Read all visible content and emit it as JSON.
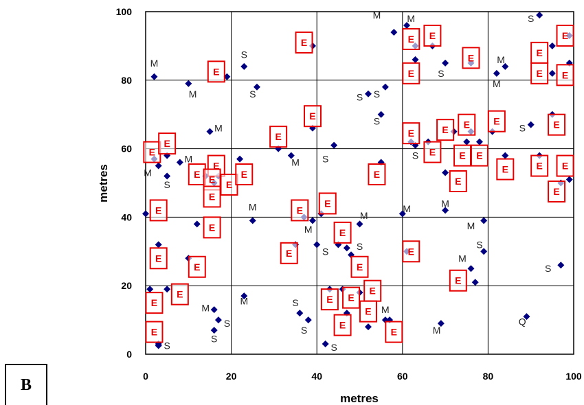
{
  "panel_label": "B",
  "chart_data": {
    "type": "scatter",
    "xlabel": "metres",
    "ylabel": "metres",
    "xlim": [
      0,
      100
    ],
    "ylim": [
      0,
      100
    ],
    "xticks": [
      0,
      20,
      40,
      60,
      80,
      100
    ],
    "yticks": [
      0,
      20,
      40,
      60,
      80,
      100
    ],
    "grid": true,
    "colors": {
      "points": "#000080",
      "e_boxes": "#e60000",
      "grid": "#000000"
    },
    "points": [
      [
        2,
        81
      ],
      [
        10,
        79
      ],
      [
        19,
        81
      ],
      [
        23,
        84
      ],
      [
        26,
        78
      ],
      [
        39,
        90
      ],
      [
        58,
        94
      ],
      [
        61,
        96
      ],
      [
        63,
        90
      ],
      [
        63,
        86
      ],
      [
        67,
        90
      ],
      [
        70,
        85
      ],
      [
        76,
        85
      ],
      [
        82,
        82
      ],
      [
        84,
        84
      ],
      [
        92,
        99
      ],
      [
        95,
        90
      ],
      [
        99,
        93
      ],
      [
        99,
        85
      ],
      [
        95,
        82
      ],
      [
        52,
        76
      ],
      [
        56,
        78
      ],
      [
        55,
        70
      ],
      [
        15,
        65
      ],
      [
        39,
        66
      ],
      [
        44,
        61
      ],
      [
        31,
        60
      ],
      [
        34,
        58
      ],
      [
        22,
        57
      ],
      [
        3,
        55
      ],
      [
        5,
        58
      ],
      [
        5,
        52
      ],
      [
        2,
        57
      ],
      [
        8,
        56
      ],
      [
        14,
        52
      ],
      [
        16,
        50
      ],
      [
        17,
        52
      ],
      [
        55,
        56
      ],
      [
        62,
        62
      ],
      [
        63,
        61
      ],
      [
        66,
        62
      ],
      [
        72,
        65
      ],
      [
        75,
        62
      ],
      [
        76,
        65
      ],
      [
        78,
        62
      ],
      [
        81,
        65
      ],
      [
        84,
        58
      ],
      [
        90,
        67
      ],
      [
        92,
        58
      ],
      [
        95,
        70
      ],
      [
        97,
        50
      ],
      [
        99,
        51
      ],
      [
        70,
        53
      ],
      [
        0,
        41
      ],
      [
        3,
        32
      ],
      [
        12,
        38
      ],
      [
        10,
        28
      ],
      [
        25,
        39
      ],
      [
        37,
        40
      ],
      [
        39,
        39
      ],
      [
        41,
        41
      ],
      [
        35,
        32
      ],
      [
        40,
        32
      ],
      [
        45,
        32
      ],
      [
        47,
        31
      ],
      [
        48,
        29
      ],
      [
        50,
        38
      ],
      [
        60,
        41
      ],
      [
        61,
        30
      ],
      [
        70,
        42
      ],
      [
        79,
        39
      ],
      [
        79,
        30
      ],
      [
        76,
        25
      ],
      [
        77,
        21
      ],
      [
        97,
        26
      ],
      [
        1,
        19
      ],
      [
        5,
        19
      ],
      [
        16,
        13
      ],
      [
        17,
        10
      ],
      [
        16,
        7
      ],
      [
        23,
        17
      ],
      [
        36,
        12
      ],
      [
        38,
        10
      ],
      [
        43,
        19
      ],
      [
        46,
        19
      ],
      [
        47,
        12
      ],
      [
        50,
        18
      ],
      [
        52,
        8
      ],
      [
        56,
        10
      ],
      [
        57,
        10
      ],
      [
        42,
        3
      ],
      [
        69,
        9
      ],
      [
        89,
        11
      ],
      [
        3,
        3
      ],
      [
        3,
        2.5
      ]
    ],
    "labels": [
      {
        "text": "M",
        "x": 2,
        "y": 84
      },
      {
        "text": "M",
        "x": 11,
        "y": 75
      },
      {
        "text": "S",
        "x": 23,
        "y": 86.5
      },
      {
        "text": "S",
        "x": 25,
        "y": 75
      },
      {
        "text": "M",
        "x": 54,
        "y": 98
      },
      {
        "text": "M",
        "x": 62,
        "y": 97
      },
      {
        "text": "S",
        "x": 69,
        "y": 81
      },
      {
        "text": "M",
        "x": 83,
        "y": 85
      },
      {
        "text": "M",
        "x": 82,
        "y": 78
      },
      {
        "text": "S",
        "x": 90,
        "y": 97
      },
      {
        "text": "S",
        "x": 50,
        "y": 74
      },
      {
        "text": "S",
        "x": 54,
        "y": 75
      },
      {
        "text": "S",
        "x": 54,
        "y": 67
      },
      {
        "text": "M",
        "x": 17,
        "y": 65
      },
      {
        "text": "M",
        "x": 35,
        "y": 55
      },
      {
        "text": "S",
        "x": 42,
        "y": 56
      },
      {
        "text": "M",
        "x": 0.5,
        "y": 52
      },
      {
        "text": "S",
        "x": 5,
        "y": 48.5
      },
      {
        "text": "M",
        "x": 10,
        "y": 56
      },
      {
        "text": "S",
        "x": 63,
        "y": 57
      },
      {
        "text": "S",
        "x": 88,
        "y": 65
      },
      {
        "text": "M",
        "x": 25,
        "y": 42
      },
      {
        "text": "M",
        "x": 38,
        "y": 35.5
      },
      {
        "text": "M",
        "x": 51,
        "y": 39.5
      },
      {
        "text": "S",
        "x": 50,
        "y": 30.5
      },
      {
        "text": "S",
        "x": 42,
        "y": 29
      },
      {
        "text": "M",
        "x": 61,
        "y": 41.5
      },
      {
        "text": "M",
        "x": 70,
        "y": 43
      },
      {
        "text": "M",
        "x": 76,
        "y": 36.5
      },
      {
        "text": "S",
        "x": 78,
        "y": 31
      },
      {
        "text": "M",
        "x": 74,
        "y": 27
      },
      {
        "text": "S",
        "x": 94,
        "y": 24
      },
      {
        "text": "M",
        "x": 14,
        "y": 12.5
      },
      {
        "text": "S",
        "x": 19,
        "y": 8
      },
      {
        "text": "S",
        "x": 16,
        "y": 3.5
      },
      {
        "text": "M",
        "x": 23,
        "y": 14.5
      },
      {
        "text": "S",
        "x": 35,
        "y": 14
      },
      {
        "text": "S",
        "x": 37,
        "y": 6
      },
      {
        "text": "M",
        "x": 56,
        "y": 12
      },
      {
        "text": "S",
        "x": 44,
        "y": 1
      },
      {
        "text": "M",
        "x": 68,
        "y": 6
      },
      {
        "text": "Q",
        "x": 88,
        "y": 8.5
      },
      {
        "text": "S",
        "x": 5,
        "y": 1.5
      }
    ],
    "e_boxes": [
      [
        37,
        91
      ],
      [
        16.5,
        82.5
      ],
      [
        62,
        92
      ],
      [
        67,
        93
      ],
      [
        76,
        86.5
      ],
      [
        62,
        82
      ],
      [
        92,
        88
      ],
      [
        98,
        93
      ],
      [
        92,
        82
      ],
      [
        98,
        81.5
      ],
      [
        39,
        69.5
      ],
      [
        31,
        63.5
      ],
      [
        62,
        64.5
      ],
      [
        70,
        65.5
      ],
      [
        75,
        67
      ],
      [
        82,
        68
      ],
      [
        96,
        67
      ],
      [
        1.5,
        59
      ],
      [
        5,
        61.5
      ],
      [
        12,
        52.5
      ],
      [
        16.5,
        55
      ],
      [
        15.5,
        51
      ],
      [
        19.5,
        49.5
      ],
      [
        23,
        52.5
      ],
      [
        54,
        52.5
      ],
      [
        67,
        59
      ],
      [
        74,
        58
      ],
      [
        78,
        58
      ],
      [
        84,
        54
      ],
      [
        92,
        55
      ],
      [
        98,
        55
      ],
      [
        73,
        50.5
      ],
      [
        96,
        47.5
      ],
      [
        15.5,
        46
      ],
      [
        3,
        42
      ],
      [
        15.5,
        37
      ],
      [
        36,
        42
      ],
      [
        42.5,
        44
      ],
      [
        46,
        35.5
      ],
      [
        3,
        28
      ],
      [
        12,
        25.5
      ],
      [
        33.5,
        29.5
      ],
      [
        50,
        25.5
      ],
      [
        62,
        30
      ],
      [
        73,
        21.5
      ],
      [
        8,
        17.5
      ],
      [
        2,
        15
      ],
      [
        43,
        16
      ],
      [
        48,
        16.5
      ],
      [
        53,
        18.5
      ],
      [
        52,
        12.5
      ],
      [
        46,
        8.5
      ],
      [
        58,
        6.5
      ],
      [
        2,
        6.5
      ]
    ],
    "e_box_label": "E"
  }
}
